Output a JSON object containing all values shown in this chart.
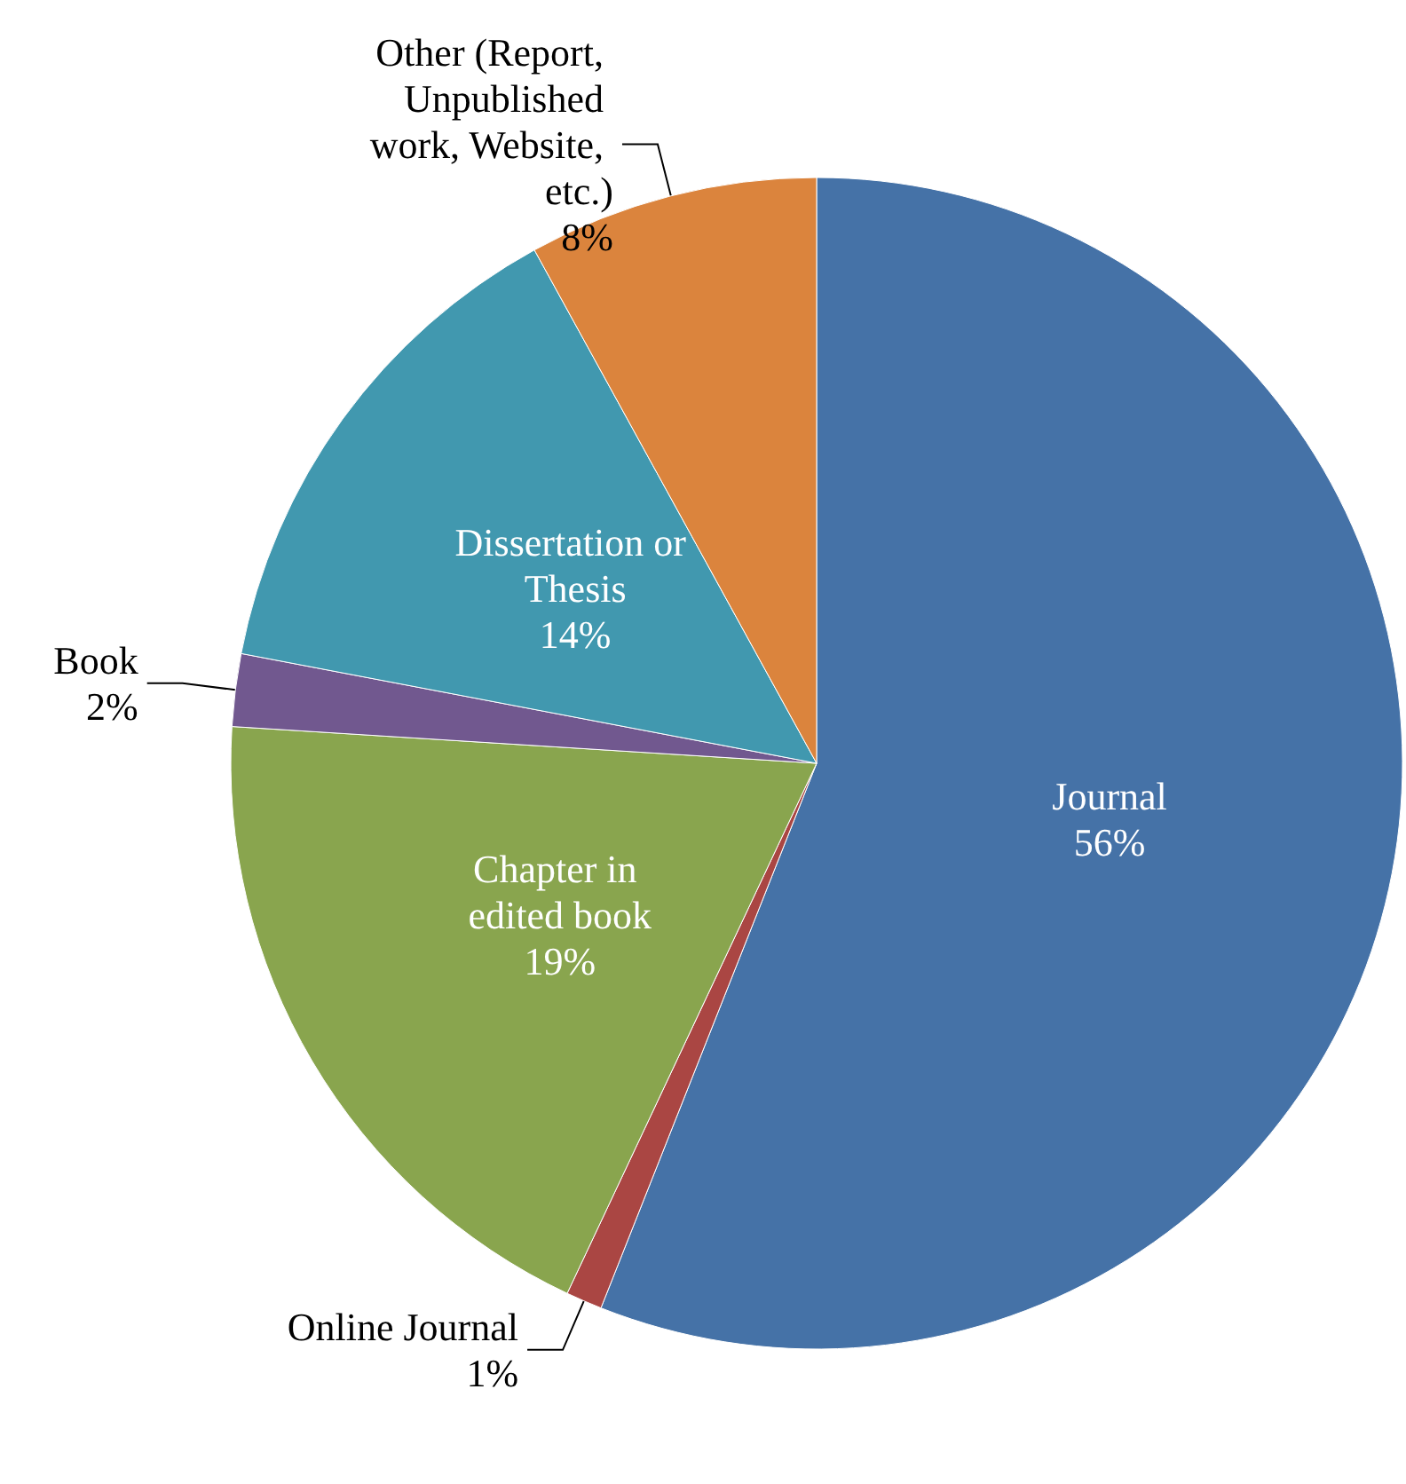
{
  "chart_data": {
    "type": "pie",
    "categories": [
      "Journal",
      "Online Journal",
      "Chapter in edited book",
      "Book",
      "Dissertation or Thesis",
      "Other (Report, Unpublished work, Website, etc.)"
    ],
    "values": [
      56,
      1,
      19,
      2,
      14,
      8
    ],
    "colors": [
      "#4572a7",
      "#aa4643",
      "#89a54e",
      "#71588f",
      "#4198af",
      "#db843d"
    ],
    "value_labels": [
      "56%",
      "1%",
      "19%",
      "2%",
      "14%",
      "8%"
    ],
    "legend": false
  }
}
